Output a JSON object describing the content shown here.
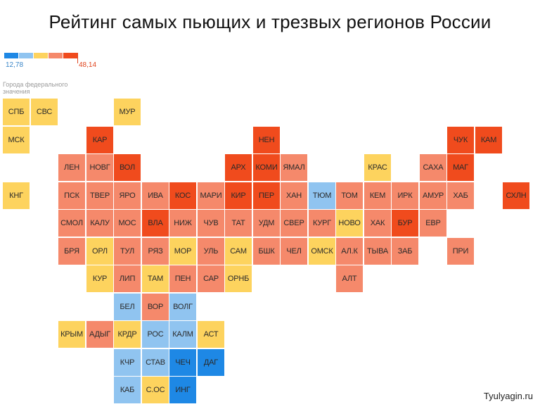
{
  "title": "Рейтинг самых пьющих и трезвых регионов России",
  "legend": {
    "min_label": "12,78",
    "max_label": "48,14",
    "colors": [
      "#1e88e5",
      "#90c4f0",
      "#fdd35e",
      "#f5896b",
      "#f04b1d"
    ]
  },
  "note": "Города федерального значения",
  "watermark": "Tyulyagin.ru",
  "palette": {
    "darkblue": "#1e88e5",
    "lightblue": "#90c4f0",
    "yellow": "#fdd35e",
    "salmon": "#f5896b",
    "red": "#f04b1d"
  },
  "chart_data": {
    "type": "heatmap",
    "title": "Рейтинг самых пьющих и трезвых регионов России",
    "scale": {
      "min": 12.78,
      "max": 48.14
    },
    "cells": [
      {
        "label": "СПБ",
        "col": 0,
        "row": 0,
        "color": "yellow"
      },
      {
        "label": "СВС",
        "col": 1,
        "row": 0,
        "color": "yellow"
      },
      {
        "label": "МУР",
        "col": 4,
        "row": 0,
        "color": "yellow"
      },
      {
        "label": "МСК",
        "col": 0,
        "row": 1,
        "color": "yellow"
      },
      {
        "label": "КАР",
        "col": 3,
        "row": 1,
        "color": "red"
      },
      {
        "label": "НЕН",
        "col": 9,
        "row": 1,
        "color": "red"
      },
      {
        "label": "ЧУК",
        "col": 16,
        "row": 1,
        "color": "red"
      },
      {
        "label": "КАМ",
        "col": 17,
        "row": 1,
        "color": "red"
      },
      {
        "label": "ЛЕН",
        "col": 2,
        "row": 2,
        "color": "salmon"
      },
      {
        "label": "НОВГ",
        "col": 3,
        "row": 2,
        "color": "salmon"
      },
      {
        "label": "ВОЛ",
        "col": 4,
        "row": 2,
        "color": "red"
      },
      {
        "label": "АРХ",
        "col": 8,
        "row": 2,
        "color": "red"
      },
      {
        "label": "КОМИ",
        "col": 9,
        "row": 2,
        "color": "red"
      },
      {
        "label": "ЯМАЛ",
        "col": 10,
        "row": 2,
        "color": "salmon"
      },
      {
        "label": "КРАС",
        "col": 13,
        "row": 2,
        "color": "yellow"
      },
      {
        "label": "САХА",
        "col": 15,
        "row": 2,
        "color": "salmon"
      },
      {
        "label": "МАГ",
        "col": 16,
        "row": 2,
        "color": "red"
      },
      {
        "label": "КНГ",
        "col": 0,
        "row": 3,
        "color": "yellow"
      },
      {
        "label": "ПСК",
        "col": 2,
        "row": 3,
        "color": "salmon"
      },
      {
        "label": "ТВЕР",
        "col": 3,
        "row": 3,
        "color": "salmon"
      },
      {
        "label": "ЯРО",
        "col": 4,
        "row": 3,
        "color": "salmon"
      },
      {
        "label": "ИВА",
        "col": 5,
        "row": 3,
        "color": "salmon"
      },
      {
        "label": "КОС",
        "col": 6,
        "row": 3,
        "color": "red"
      },
      {
        "label": "МАРИ",
        "col": 7,
        "row": 3,
        "color": "salmon"
      },
      {
        "label": "КИР",
        "col": 8,
        "row": 3,
        "color": "red"
      },
      {
        "label": "ПЕР",
        "col": 9,
        "row": 3,
        "color": "red"
      },
      {
        "label": "ХАН",
        "col": 10,
        "row": 3,
        "color": "salmon"
      },
      {
        "label": "ТЮМ",
        "col": 11,
        "row": 3,
        "color": "lightblue"
      },
      {
        "label": "ТОМ",
        "col": 12,
        "row": 3,
        "color": "salmon"
      },
      {
        "label": "КЕМ",
        "col": 13,
        "row": 3,
        "color": "salmon"
      },
      {
        "label": "ИРК",
        "col": 14,
        "row": 3,
        "color": "salmon"
      },
      {
        "label": "АМУР",
        "col": 15,
        "row": 3,
        "color": "salmon"
      },
      {
        "label": "ХАБ",
        "col": 16,
        "row": 3,
        "color": "salmon"
      },
      {
        "label": "СХЛН",
        "col": 18,
        "row": 3,
        "color": "red"
      },
      {
        "label": "СМОЛ",
        "col": 2,
        "row": 4,
        "color": "salmon"
      },
      {
        "label": "КАЛУ",
        "col": 3,
        "row": 4,
        "color": "salmon"
      },
      {
        "label": "МОС",
        "col": 4,
        "row": 4,
        "color": "salmon"
      },
      {
        "label": "ВЛА",
        "col": 5,
        "row": 4,
        "color": "red"
      },
      {
        "label": "НИЖ",
        "col": 6,
        "row": 4,
        "color": "salmon"
      },
      {
        "label": "ЧУВ",
        "col": 7,
        "row": 4,
        "color": "salmon"
      },
      {
        "label": "ТАТ",
        "col": 8,
        "row": 4,
        "color": "salmon"
      },
      {
        "label": "УДМ",
        "col": 9,
        "row": 4,
        "color": "salmon"
      },
      {
        "label": "СВЕР",
        "col": 10,
        "row": 4,
        "color": "salmon"
      },
      {
        "label": "КУРГ",
        "col": 11,
        "row": 4,
        "color": "salmon"
      },
      {
        "label": "НОВО",
        "col": 12,
        "row": 4,
        "color": "yellow"
      },
      {
        "label": "ХАК",
        "col": 13,
        "row": 4,
        "color": "salmon"
      },
      {
        "label": "БУР",
        "col": 14,
        "row": 4,
        "color": "red"
      },
      {
        "label": "ЕВР",
        "col": 15,
        "row": 4,
        "color": "salmon"
      },
      {
        "label": "БРЯ",
        "col": 2,
        "row": 5,
        "color": "salmon"
      },
      {
        "label": "ОРЛ",
        "col": 3,
        "row": 5,
        "color": "yellow"
      },
      {
        "label": "ТУЛ",
        "col": 4,
        "row": 5,
        "color": "salmon"
      },
      {
        "label": "РЯЗ",
        "col": 5,
        "row": 5,
        "color": "salmon"
      },
      {
        "label": "МОР",
        "col": 6,
        "row": 5,
        "color": "yellow"
      },
      {
        "label": "УЛЬ",
        "col": 7,
        "row": 5,
        "color": "salmon"
      },
      {
        "label": "САМ",
        "col": 8,
        "row": 5,
        "color": "yellow"
      },
      {
        "label": "БШК",
        "col": 9,
        "row": 5,
        "color": "salmon"
      },
      {
        "label": "ЧЕЛ",
        "col": 10,
        "row": 5,
        "color": "salmon"
      },
      {
        "label": "ОМСК",
        "col": 11,
        "row": 5,
        "color": "yellow"
      },
      {
        "label": "АЛ.К",
        "col": 12,
        "row": 5,
        "color": "salmon"
      },
      {
        "label": "ТЫВА",
        "col": 13,
        "row": 5,
        "color": "salmon"
      },
      {
        "label": "ЗАБ",
        "col": 14,
        "row": 5,
        "color": "salmon"
      },
      {
        "label": "ПРИ",
        "col": 16,
        "row": 5,
        "color": "salmon"
      },
      {
        "label": "КУР",
        "col": 3,
        "row": 6,
        "color": "yellow"
      },
      {
        "label": "ЛИП",
        "col": 4,
        "row": 6,
        "color": "salmon"
      },
      {
        "label": "ТАМ",
        "col": 5,
        "row": 6,
        "color": "yellow"
      },
      {
        "label": "ПЕН",
        "col": 6,
        "row": 6,
        "color": "salmon"
      },
      {
        "label": "САР",
        "col": 7,
        "row": 6,
        "color": "salmon"
      },
      {
        "label": "ОРНБ",
        "col": 8,
        "row": 6,
        "color": "yellow"
      },
      {
        "label": "АЛТ",
        "col": 12,
        "row": 6,
        "color": "salmon"
      },
      {
        "label": "БЕЛ",
        "col": 4,
        "row": 7,
        "color": "lightblue"
      },
      {
        "label": "ВОР",
        "col": 5,
        "row": 7,
        "color": "salmon"
      },
      {
        "label": "ВОЛГ",
        "col": 6,
        "row": 7,
        "color": "lightblue"
      },
      {
        "label": "КРЫМ",
        "col": 2,
        "row": 8,
        "color": "yellow"
      },
      {
        "label": "АДЫГ",
        "col": 3,
        "row": 8,
        "color": "salmon"
      },
      {
        "label": "КРДР",
        "col": 4,
        "row": 8,
        "color": "yellow"
      },
      {
        "label": "РОС",
        "col": 5,
        "row": 8,
        "color": "lightblue"
      },
      {
        "label": "КАЛМ",
        "col": 6,
        "row": 8,
        "color": "lightblue"
      },
      {
        "label": "АСТ",
        "col": 7,
        "row": 8,
        "color": "yellow"
      },
      {
        "label": "КЧР",
        "col": 4,
        "row": 9,
        "color": "lightblue"
      },
      {
        "label": "СТАВ",
        "col": 5,
        "row": 9,
        "color": "lightblue"
      },
      {
        "label": "ЧЕЧ",
        "col": 6,
        "row": 9,
        "color": "darkblue"
      },
      {
        "label": "ДАГ",
        "col": 7,
        "row": 9,
        "color": "darkblue"
      },
      {
        "label": "КАБ",
        "col": 4,
        "row": 10,
        "color": "lightblue"
      },
      {
        "label": "С.ОС",
        "col": 5,
        "row": 10,
        "color": "yellow"
      },
      {
        "label": "ИНГ",
        "col": 6,
        "row": 10,
        "color": "darkblue"
      }
    ]
  }
}
